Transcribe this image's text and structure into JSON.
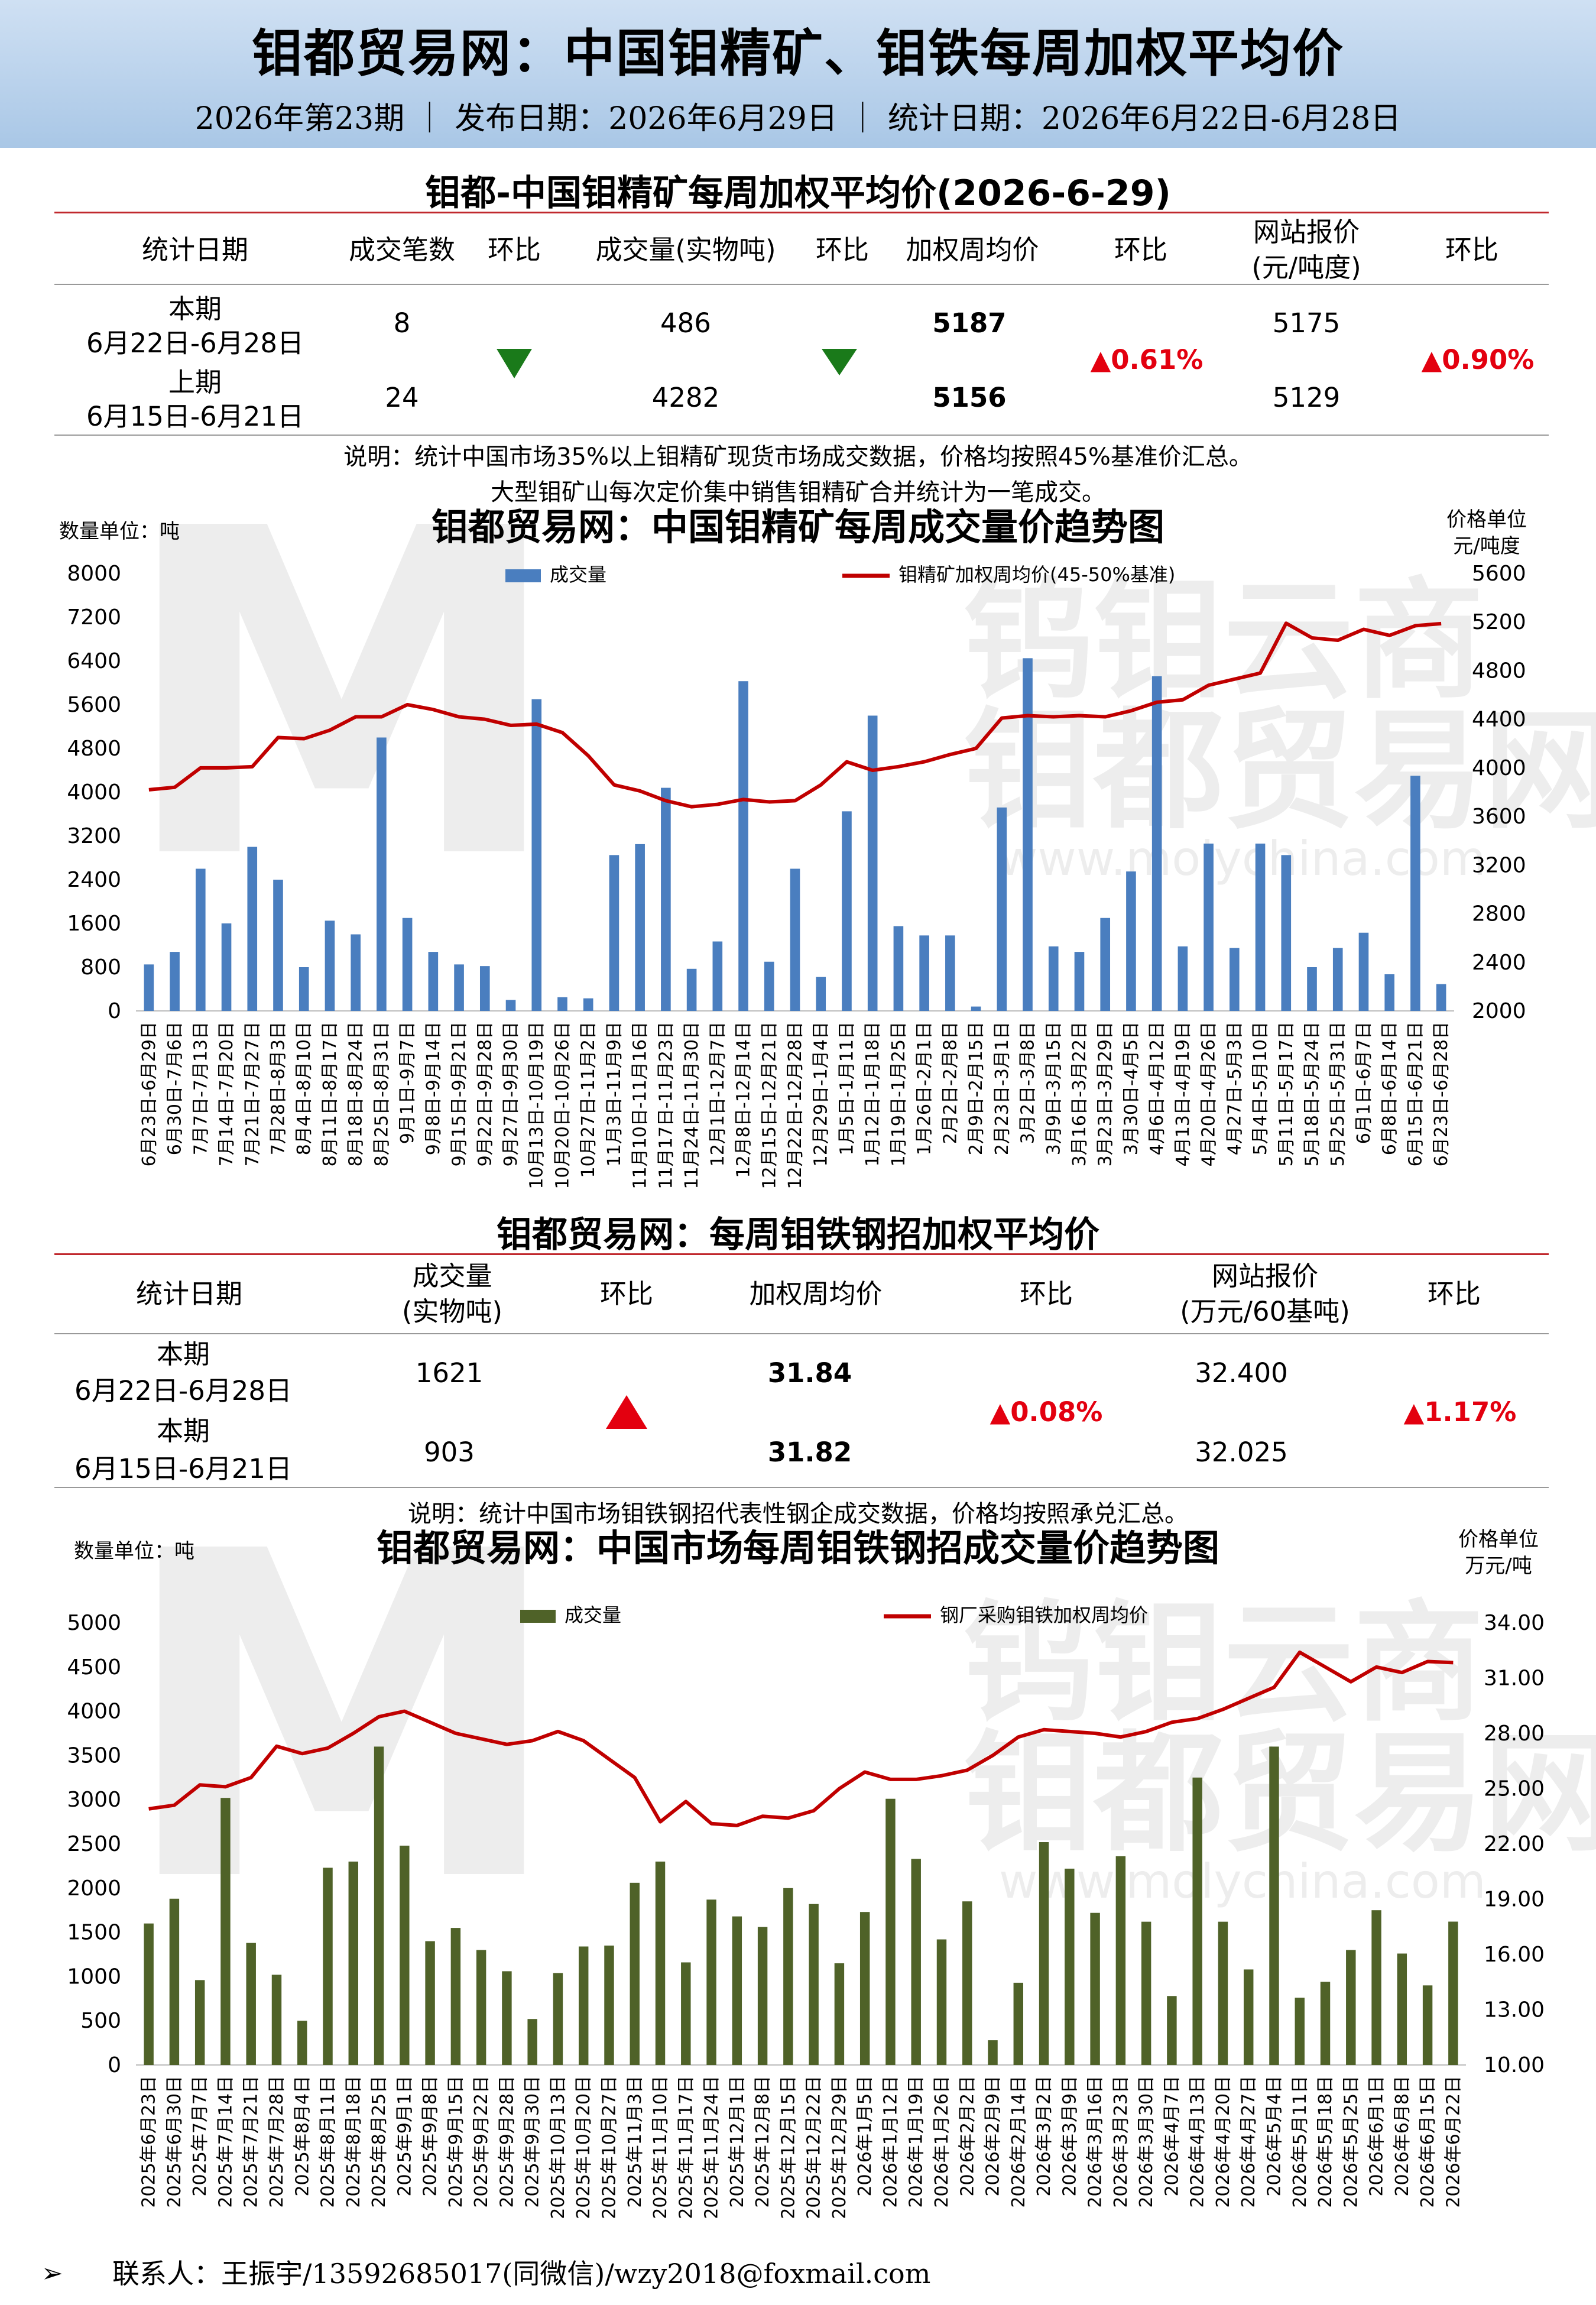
{
  "header": {
    "title": "钼都贸易网：中国钼精矿、钼铁每周加权平均价",
    "subtitle": "2026年第23期 ｜ 发布日期：2026年6月29日 ｜ 统计日期：2026年6月22日-6月28日"
  },
  "concentrate_table": {
    "title": "钼都-中国钼精矿每周加权平均价(2026-6-29)",
    "headers": [
      "统计日期",
      "成交笔数",
      "环比",
      "成交量(实物吨)",
      "环比",
      "加权周均价",
      "环比",
      "网站报价",
      "(元/吨度)",
      "环比"
    ],
    "current_label": "本期",
    "current_range": "6月22日-6月28日",
    "previous_label": "上期",
    "previous_range": "6月15日-6月21日",
    "current": {
      "trades": "8",
      "volume": "486",
      "avg_price": "5187",
      "quote": "5175"
    },
    "previous": {
      "trades": "24",
      "volume": "4282",
      "avg_price": "5156",
      "quote": "5129"
    },
    "price_change": "▲0.61%",
    "quote_change": "▲0.90%",
    "note1": "说明：统计中国市场35%以上钼精矿现货市场成交数据，价格均按照45%基准价汇总。",
    "note2": "大型钼矿山每次定价集中销售钼精矿合并统计为一笔成交。"
  },
  "ferro_table": {
    "title": "钼都贸易网：每周钼铁钢招加权平均价",
    "headers": [
      "统计日期",
      "成交量",
      "(实物吨)",
      "环比",
      "加权周均价",
      "环比",
      "网站报价",
      "(万元/60基吨)",
      "环比"
    ],
    "current_label": "本期",
    "current_range": "6月22日-6月28日",
    "previous_label": "本期",
    "previous_range": "6月15日-6月21日",
    "current": {
      "volume": "1621",
      "avg_price": "31.84",
      "quote": "32.400"
    },
    "previous": {
      "volume": "903",
      "avg_price": "31.82",
      "quote": "32.025"
    },
    "price_change": "▲0.08%",
    "quote_change": "▲1.17%",
    "note": "说明：统计中国市场钼铁钢招代表性钢企成交数据，价格均按照承兑汇总。"
  },
  "watermark": {
    "line1": "钨钼云商",
    "line2": "钼都贸易网",
    "line3": "www.molychina.com"
  },
  "footer": {
    "contact": "联系人：王振宇/13592685017(同微信)/wzy2018@foxmail.com"
  },
  "colors": {
    "bar_blue": "#4a7ebf",
    "bar_green": "#4f6228",
    "line_red": "#c00000",
    "rule_red": "#c0282d"
  },
  "chart_data": [
    {
      "type": "bar+line",
      "title": "钼都贸易网：中国钼精矿每周成交量价趋势图",
      "left_unit": "数量单位：吨",
      "right_unit_1": "价格单位",
      "right_unit_2": "元/吨度",
      "legend": [
        "成交量",
        "钼精矿加权周均价(45-50%基准)"
      ],
      "yleft_ticks": [
        "0",
        "800",
        "1600",
        "2400",
        "3200",
        "4000",
        "4800",
        "5600",
        "6400",
        "7200",
        "8000"
      ],
      "yright_ticks": [
        "2000",
        "2400",
        "2800",
        "3200",
        "3600",
        "4000",
        "4400",
        "4800",
        "5200",
        "5600"
      ],
      "ylim_left": [
        0,
        8000
      ],
      "ylim_right": [
        2000,
        5600
      ],
      "categories": [
        "6月23日-6月29日",
        "6月30日-7月6日",
        "7月7日-7月13日",
        "7月14日-7月20日",
        "7月21日-7月27日",
        "7月28日-8月3日",
        "8月4日-8月10日",
        "8月11日-8月17日",
        "8月18日-8月24日",
        "8月25日-8月31日",
        "9月1日-9月7日",
        "9月8日-9月14日",
        "9月15日-9月21日",
        "9月22日-9月28日",
        "9月27日-9月30日",
        "10月13日-10月19日",
        "10月20日-10月26日",
        "10月27日-11月2日",
        "11月3日-11月9日",
        "11月10日-11月16日",
        "11月17日-11月23日",
        "11月24日-11月30日",
        "12月1日-12月7日",
        "12月8日-12月14日",
        "12月15日-12月21日",
        "12月22日-12月28日",
        "12月29日-1月4日",
        "1月5日-1月11日",
        "1月12日-1月18日",
        "1月19日-1月25日",
        "1月26日-2月1日",
        "2月2日-2月8日",
        "2月9日-2月15日",
        "2月23日-3月1日",
        "3月2日-3月8日",
        "3月9日-3月15日",
        "3月16日-3月22日",
        "3月23日-3月29日",
        "3月30日-4月5日",
        "4月6日-4月12日",
        "4月13日-4月19日",
        "4月20日-4月26日",
        "4月27日-5月3日",
        "5月4日-5月10日",
        "5月11日-5月17日",
        "5月18日-5月24日",
        "5月25日-5月31日",
        "6月1日-6月7日",
        "6月8日-6月14日",
        "6月15日-6月21日",
        "6月23日-6月28日"
      ],
      "volume": [
        850,
        1080,
        2600,
        1600,
        3000,
        2400,
        800,
        1650,
        1400,
        5000,
        1700,
        1080,
        850,
        820,
        200,
        5700,
        250,
        230,
        2850,
        3050,
        4080,
        770,
        1270,
        6030,
        900,
        2600,
        620,
        3650,
        5400,
        1550,
        1380,
        1380,
        80,
        3720,
        6450,
        1180,
        1080,
        1700,
        2550,
        6120,
        1180,
        3060,
        1150,
        3060,
        2850,
        800,
        1150,
        1430,
        670,
        4300,
        490
      ],
      "price": [
        3820,
        3840,
        4000,
        4000,
        4010,
        4250,
        4240,
        4310,
        4420,
        4420,
        4520,
        4480,
        4420,
        4400,
        4350,
        4360,
        4290,
        4100,
        3860,
        3810,
        3730,
        3680,
        3700,
        3740,
        3720,
        3730,
        3860,
        4050,
        3980,
        4010,
        4050,
        4110,
        4160,
        4410,
        4430,
        4420,
        4430,
        4420,
        4470,
        4540,
        4560,
        4680,
        4730,
        4780,
        5190,
        5070,
        5050,
        5140,
        5090,
        5170,
        5187
      ]
    },
    {
      "type": "bar+line",
      "title": "钼都贸易网：中国市场每周钼铁钢招成交量价趋势图",
      "left_unit": "数量单位：吨",
      "right_unit_1": "价格单位",
      "right_unit_2": "万元/吨",
      "legend": [
        "成交量",
        "钢厂采购钼铁加权周均价"
      ],
      "yleft_ticks": [
        "0",
        "500",
        "1000",
        "1500",
        "2000",
        "2500",
        "3000",
        "3500",
        "4000",
        "4500",
        "5000"
      ],
      "yright_ticks": [
        "10.00",
        "13.00",
        "16.00",
        "19.00",
        "22.00",
        "25.00",
        "28.00",
        "31.00",
        "34.00"
      ],
      "ylim_left": [
        0,
        5000
      ],
      "ylim_right": [
        10,
        34
      ],
      "categories": [
        "2025年6月23日",
        "2025年6月30日",
        "2025年7月7日",
        "2025年7月14日",
        "2025年7月21日",
        "2025年7月28日",
        "2025年8月4日",
        "2025年8月11日",
        "2025年8月18日",
        "2025年8月25日",
        "2025年9月1日",
        "2025年9月8日",
        "2025年9月15日",
        "2025年9月22日",
        "2025年9月28日",
        "2025年9月30日",
        "2025年10月13日",
        "2025年10月20日",
        "2025年10月27日",
        "2025年11月3日",
        "2025年11月10日",
        "2025年11月17日",
        "2025年11月24日",
        "2025年12月1日",
        "2025年12月8日",
        "2025年12月15日",
        "2025年12月22日",
        "2025年12月29日",
        "2026年1月5日",
        "2026年1月12日",
        "2026年1月19日",
        "2026年1月26日",
        "2026年2月2日",
        "2026年2月9日",
        "2026年2月14日",
        "2026年3月2日",
        "2026年3月9日",
        "2026年3月16日",
        "2026年3月23日",
        "2026年3月30日",
        "2026年4月7日",
        "2026年4月13日",
        "2026年4月20日",
        "2026年4月27日",
        "2026年5月4日",
        "2026年5月11日",
        "2026年5月18日",
        "2026年5月25日",
        "2026年6月1日",
        "2026年6月8日",
        "2026年6月15日",
        "2026年6月22日"
      ],
      "volume": [
        1600,
        1880,
        960,
        3020,
        1380,
        1020,
        500,
        2230,
        2300,
        3600,
        2480,
        1400,
        1550,
        1300,
        1060,
        520,
        1040,
        1340,
        1350,
        2060,
        2300,
        1160,
        1870,
        1680,
        1560,
        2000,
        1820,
        1150,
        1730,
        3010,
        2330,
        1420,
        1850,
        280,
        930,
        2520,
        2220,
        1720,
        2360,
        1620,
        780,
        3250,
        1620,
        1080,
        3600,
        760,
        940,
        1300,
        1750,
        1260,
        900,
        1621
      ]
    }
  ]
}
